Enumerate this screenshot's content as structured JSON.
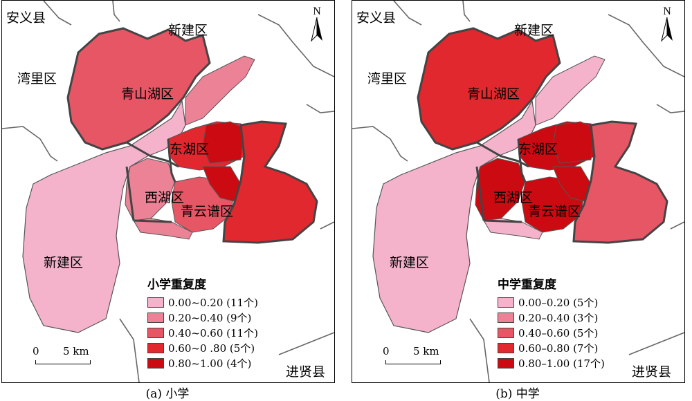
{
  "colors": {
    "c1": "#f4b3cb",
    "c2": "#ec8296",
    "c3": "#e65665",
    "c4": "#e0282e",
    "c5": "#cc0a12",
    "boundary": "#444444",
    "road": "#666666"
  },
  "panels": [
    {
      "caption": "(a) 小学",
      "north": "N",
      "scale": {
        "zero": "0",
        "dist": "5 km"
      },
      "places": {
        "anyi": "安义县",
        "xinjian_top": "新建区",
        "wanli": "湾里区",
        "qingshanhu": "青山湖区",
        "donghu": "东湖区",
        "xihu": "西湖区",
        "qingyunpu": "青云谱区",
        "xinjian_bottom": "新建区",
        "jinxian": "进贤县"
      },
      "legend": {
        "title": "小学重复度",
        "items": [
          {
            "label": "0.00~0.20 (11个)",
            "color": "#f4b3cb"
          },
          {
            "label": "0.20~0.40 (9个)",
            "color": "#ec8296"
          },
          {
            "label": "0.40~0.60 (11个)",
            "color": "#e65665"
          },
          {
            "label": "0.60~0 .80 (5个)",
            "color": "#e0282e"
          },
          {
            "label": "0.80~1.00 (4个)",
            "color": "#cc0a12"
          }
        ]
      }
    },
    {
      "caption": "(b) 中学",
      "north": "N",
      "scale": {
        "zero": "0",
        "dist": "5 km"
      },
      "places": {
        "anyi": "安义县",
        "xinjian_top": "新建区",
        "wanli": "湾里区",
        "qingshanhu": "青山湖区",
        "donghu": "东湖区",
        "xihu": "西湖区",
        "qingyunpu": "青云谱区",
        "xinjian_bottom": "新建区",
        "jinxian": "进贤县"
      },
      "legend": {
        "title": "中学重复度",
        "items": [
          {
            "label": "0.00–0.20 (5个)",
            "color": "#f4b3cb"
          },
          {
            "label": "0.20–0.40 (3个)",
            "color": "#ec8296"
          },
          {
            "label": "0.40–0.60 (5个)",
            "color": "#e65665"
          },
          {
            "label": "0.60–0.80 (7个)",
            "color": "#e0282e"
          },
          {
            "label": "0.80–1.00 (17个)",
            "color": "#cc0a12"
          }
        ]
      }
    }
  ]
}
